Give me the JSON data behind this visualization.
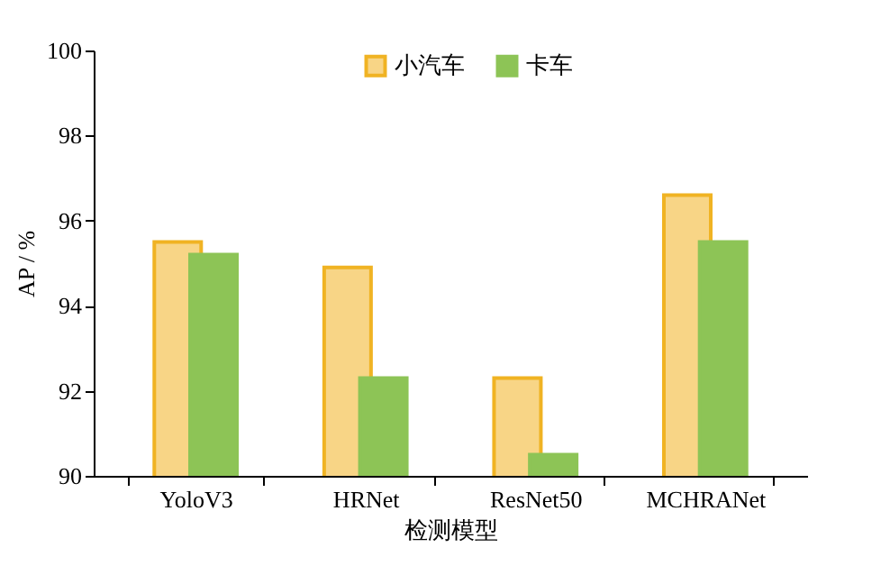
{
  "chart_data": {
    "type": "bar",
    "xlabel": "检测模型",
    "ylabel": "AP / %",
    "categories": [
      "YoloV3",
      "HRNet",
      "ResNet50",
      "MCHRANet"
    ],
    "series": [
      {
        "name": "小汽车",
        "color": "#f8d586",
        "values": [
          95.5,
          94.9,
          92.3,
          96.6
        ]
      },
      {
        "name": "卡车",
        "color": "#8dc456",
        "values": [
          95.2,
          92.3,
          90.5,
          95.5
        ]
      }
    ],
    "ylim": [
      90,
      100
    ],
    "yticks": [
      90,
      92,
      94,
      96,
      98,
      100
    ],
    "grid": false,
    "legend": "top"
  }
}
